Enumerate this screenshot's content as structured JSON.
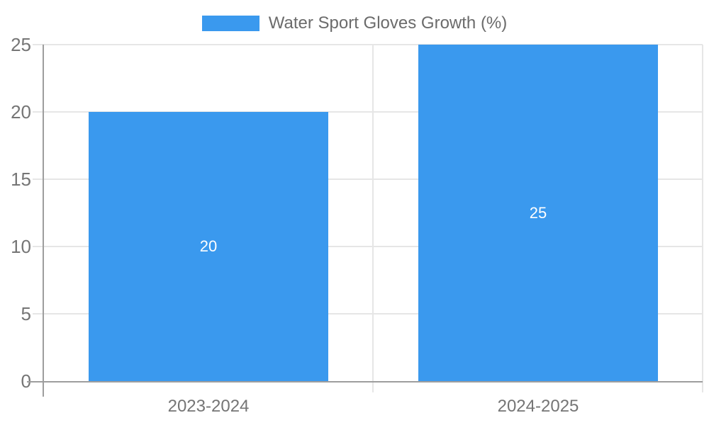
{
  "legend": {
    "label": "Water Sport Gloves Growth (%)"
  },
  "chart_data": {
    "type": "bar",
    "title": "Water Sport Gloves Growth (%)",
    "categories": [
      "2023-2024",
      "2024-2025"
    ],
    "series": [
      {
        "name": "Water Sport Gloves Growth (%)",
        "values": [
          20,
          25
        ],
        "data_labels": [
          "20",
          "25"
        ]
      }
    ],
    "xlabel": "",
    "ylabel": "",
    "ylim": [
      0,
      25
    ],
    "yticks": [
      0,
      5,
      10,
      15,
      20,
      25
    ],
    "grid": true,
    "legend_position": "top-center",
    "colors": {
      "bar": "#3a99ee",
      "axis_line": "#9e9e9e",
      "gridline": "#e6e6e6",
      "tick_label": "#757575",
      "legend_text": "#6b6b6b",
      "data_label": "#ffffff",
      "background": "#ffffff"
    }
  }
}
